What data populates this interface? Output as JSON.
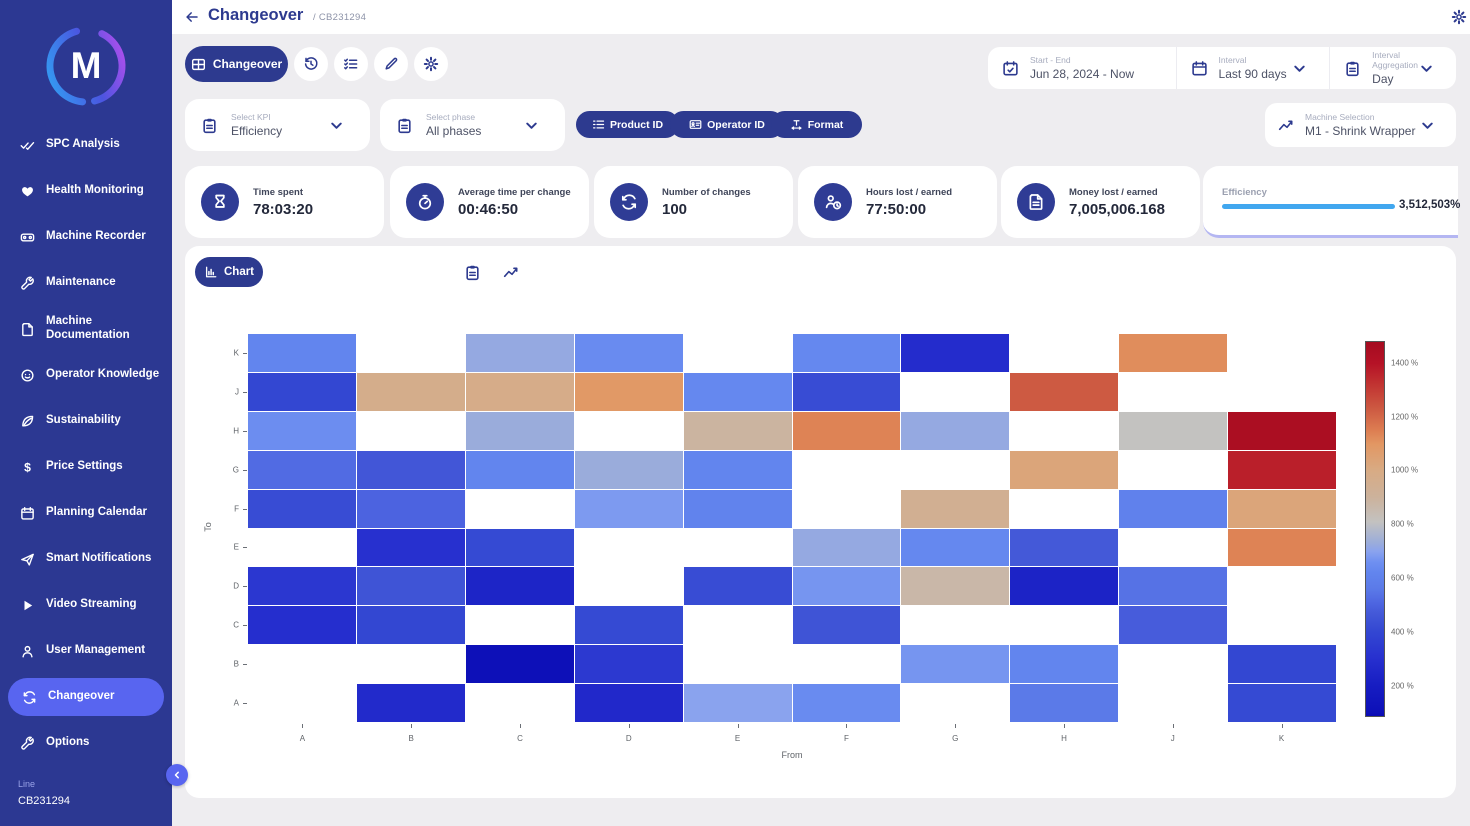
{
  "header": {
    "title": "Changeover",
    "breadcrumb": "/ CB231294"
  },
  "sidebar": {
    "logo_letter": "M",
    "items": [
      {
        "label": "SPC Analysis",
        "icon": "double-check",
        "active": false
      },
      {
        "label": "Health Monitoring",
        "icon": "heart",
        "active": false
      },
      {
        "label": "Machine Recorder",
        "icon": "recorder",
        "active": false
      },
      {
        "label": "Maintenance",
        "icon": "wrench",
        "active": false
      },
      {
        "label": "Machine Documentation",
        "icon": "document",
        "active": false
      },
      {
        "label": "Operator Knowledge",
        "icon": "face",
        "active": false
      },
      {
        "label": "Sustainability",
        "icon": "leaf",
        "active": false
      },
      {
        "label": "Price Settings",
        "icon": "dollar",
        "active": false
      },
      {
        "label": "Planning Calendar",
        "icon": "calendar",
        "active": false
      },
      {
        "label": "Smart Notifications",
        "icon": "send",
        "active": false
      },
      {
        "label": "Video Streaming",
        "icon": "play",
        "active": false
      },
      {
        "label": "User Management",
        "icon": "person",
        "active": false
      },
      {
        "label": "Changeover",
        "icon": "cycle",
        "active": true
      },
      {
        "label": "Options",
        "icon": "wrench",
        "active": false
      }
    ],
    "footer": {
      "line_label": "Line",
      "line_value": "CB231294"
    }
  },
  "toolbar": {
    "primary_tab": "Changeover"
  },
  "date_controls": {
    "start_end": {
      "label": "Start - End",
      "value": "Jun 28, 2024 - Now"
    },
    "interval": {
      "label": "Interval",
      "value": "Last 90 days"
    },
    "aggregation": {
      "label": "Interval Aggregation",
      "value": "Day"
    }
  },
  "filters": {
    "kpi": {
      "label": "Select KPI",
      "value": "Efficiency"
    },
    "phase": {
      "label": "Select phase",
      "value": "All phases"
    },
    "product_id_label": "Product ID",
    "operator_id_label": "Operator ID",
    "format_label": "Format",
    "machine": {
      "label": "Machine Selection",
      "value": "M1 - Shrink Wrapper"
    }
  },
  "kpis": [
    {
      "label": "Time spent",
      "value": "78:03:20",
      "icon": "hourglass"
    },
    {
      "label": "Average time per change",
      "value": "00:46:50",
      "icon": "stopwatch"
    },
    {
      "label": "Number of changes",
      "value": "100",
      "icon": "cycle"
    },
    {
      "label": "Hours lost / earned",
      "value": "77:50:00",
      "icon": "person-clock"
    },
    {
      "label": "Money lost / earned",
      "value": "7,005,006.168",
      "icon": "money-file"
    },
    {
      "label": "Efficiency",
      "value": "3,512,503%",
      "progress_color": "#41a7ef"
    }
  ],
  "chart_tabs": {
    "chart_label": "Chart"
  },
  "chart_data": {
    "type": "heatmap",
    "xlabel": "From",
    "ylabel": "To",
    "unit": "%",
    "x_categories": [
      "A",
      "B",
      "C",
      "D",
      "E",
      "F",
      "G",
      "H",
      "J",
      "K"
    ],
    "y_categories": [
      "K",
      "J",
      "H",
      "G",
      "F",
      "E",
      "D",
      "C",
      "B",
      "A"
    ],
    "matrix": [
      [
        620,
        null,
        720,
        640,
        null,
        630,
        280,
        null,
        1120,
        null
      ],
      [
        400,
        970,
        980,
        1090,
        630,
        420,
        null,
        1230,
        null,
        null
      ],
      [
        650,
        null,
        730,
        null,
        890,
        1140,
        720,
        null,
        810,
        1450
      ],
      [
        520,
        460,
        620,
        730,
        620,
        null,
        null,
        1030,
        null,
        1370
      ],
      [
        420,
        500,
        null,
        680,
        610,
        null,
        940,
        null,
        600,
        1030
      ],
      [
        null,
        300,
        410,
        null,
        null,
        720,
        630,
        470,
        null,
        1140
      ],
      [
        330,
        450,
        240,
        null,
        420,
        670,
        870,
        230,
        540,
        null
      ],
      [
        290,
        400,
        null,
        410,
        null,
        450,
        null,
        null,
        480,
        null
      ],
      [
        null,
        null,
        100,
        340,
        null,
        null,
        670,
        620,
        null,
        400
      ],
      [
        null,
        270,
        null,
        260,
        700,
        640,
        null,
        560,
        null,
        410
      ]
    ],
    "colorbar": {
      "vmin": 86,
      "vmax": 1480,
      "ticks": [
        1400,
        1200,
        1000,
        800,
        600,
        400,
        200
      ],
      "tick_suffix": " %",
      "anchors": [
        [
          86,
          "#0a0ab4"
        ],
        [
          100,
          "#0d10b8"
        ],
        [
          200,
          "#171dc2"
        ],
        [
          300,
          "#2730cf"
        ],
        [
          400,
          "#3347d2"
        ],
        [
          470,
          "#4459d8"
        ],
        [
          500,
          "#4c63e0"
        ],
        [
          560,
          "#5b7ae8"
        ],
        [
          620,
          "#6285ee"
        ],
        [
          660,
          "#6f90f1"
        ],
        [
          700,
          "#8aa3ee"
        ],
        [
          730,
          "#9aacdb"
        ],
        [
          810,
          "#c3c2c0"
        ],
        [
          900,
          "#ccb29c"
        ],
        [
          1000,
          "#d8ab84"
        ],
        [
          1100,
          "#e29763"
        ],
        [
          1150,
          "#dd7e52"
        ],
        [
          1230,
          "#cd5a42"
        ],
        [
          1330,
          "#c03030"
        ],
        [
          1400,
          "#b51226"
        ],
        [
          1480,
          "#a50b20"
        ]
      ]
    }
  },
  "colors": {
    "sidebar_bg": "#2c3892",
    "active_item": "#5865f0",
    "navy": "#2d3a8f",
    "page_bg": "#eeedf0",
    "progress_blue": "#41a7ef",
    "efficiency_underline": "#b4b6f2"
  }
}
